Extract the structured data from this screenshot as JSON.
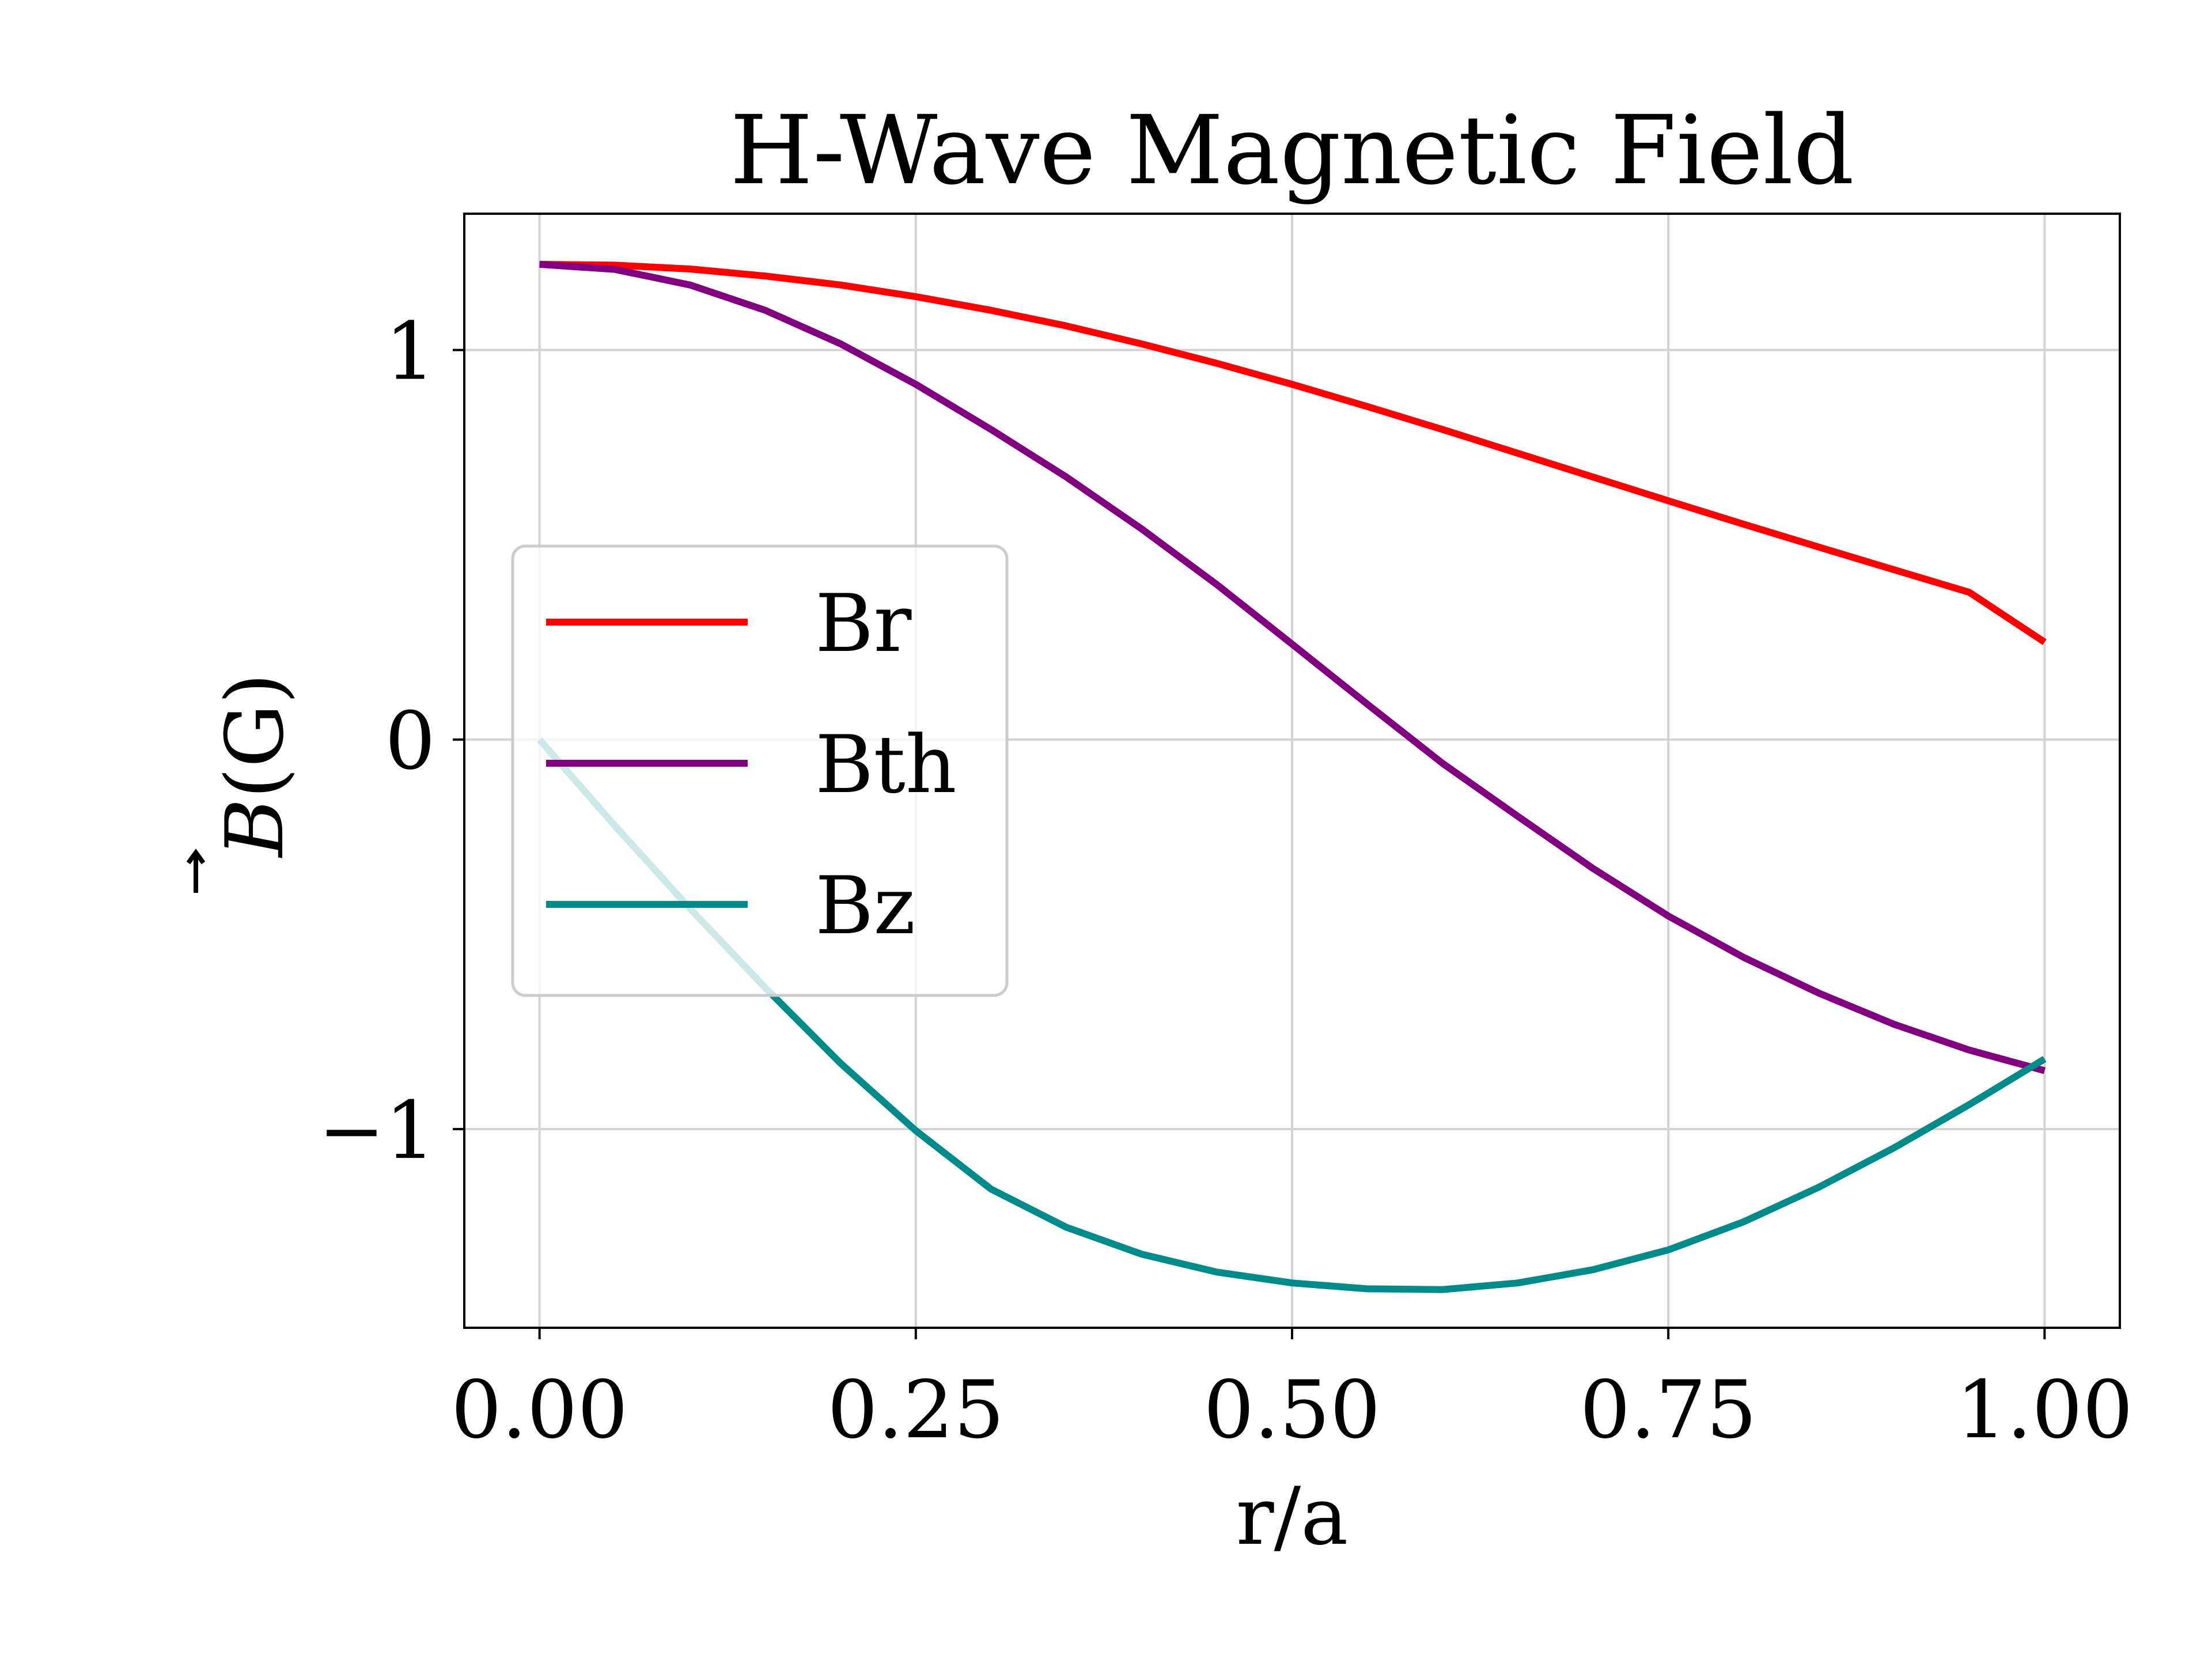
{
  "chart_data": {
    "type": "line",
    "title": "H-Wave Magnetic Field",
    "xlabel": "r/a",
    "ylabel_symbol": "B",
    "ylabel_unit": "(G)",
    "xlim": [
      -0.05,
      1.05
    ],
    "ylim": [
      -1.51,
      1.35
    ],
    "xticks": [
      0.0,
      0.25,
      0.5,
      0.75,
      1.0
    ],
    "xtick_labels": [
      "0.00",
      "0.25",
      "0.50",
      "0.75",
      "1.00"
    ],
    "yticks": [
      -1,
      0,
      1
    ],
    "ytick_labels": [
      "−1",
      "0",
      "1"
    ],
    "grid": true,
    "legend_position": "center-left",
    "x": [
      0.0,
      0.05,
      0.1,
      0.15,
      0.2,
      0.25,
      0.3,
      0.35,
      0.4,
      0.45,
      0.5,
      0.55,
      0.6,
      0.65,
      0.7,
      0.75,
      0.8,
      0.85,
      0.9,
      0.95,
      1.0
    ],
    "series": [
      {
        "name": "Br",
        "color": "#ff0000",
        "values": [
          1.22,
          1.218,
          1.208,
          1.19,
          1.167,
          1.137,
          1.102,
          1.062,
          1.016,
          0.966,
          0.912,
          0.855,
          0.796,
          0.735,
          0.674,
          0.613,
          0.553,
          0.494,
          0.436,
          0.378,
          0.25
        ]
      },
      {
        "name": "Bth",
        "color": "#800080",
        "values": [
          1.22,
          1.207,
          1.167,
          1.102,
          1.016,
          0.912,
          0.796,
          0.674,
          0.541,
          0.398,
          0.245,
          0.091,
          -0.061,
          -0.197,
          -0.331,
          -0.453,
          -0.559,
          -0.651,
          -0.731,
          -0.797,
          -0.85
        ]
      },
      {
        "name": "Bz",
        "color": "#008b8b",
        "values": [
          0.0,
          -0.221,
          -0.434,
          -0.637,
          -0.831,
          -1.004,
          -1.154,
          -1.252,
          -1.321,
          -1.367,
          -1.395,
          -1.41,
          -1.412,
          -1.395,
          -1.361,
          -1.31,
          -1.238,
          -1.149,
          -1.048,
          -0.937,
          -0.82
        ]
      }
    ]
  }
}
